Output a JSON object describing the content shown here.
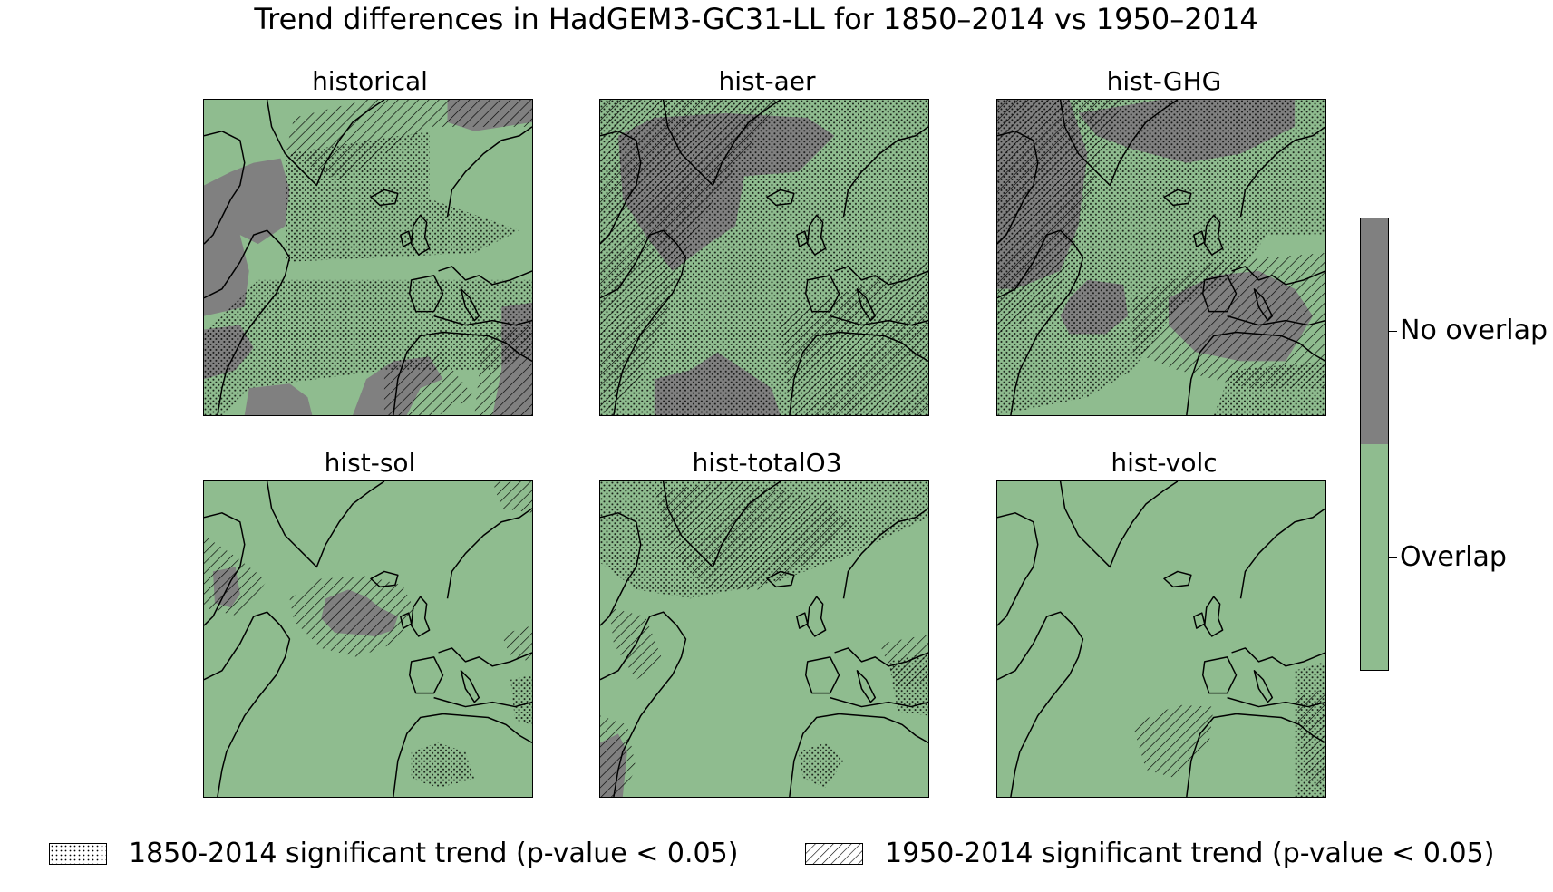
{
  "title": "Trend differences in HadGEM3-GC31-LL for 1850–2014 vs 1950–2014",
  "colors": {
    "overlap": "#8fbc8f",
    "no_overlap": "#808080",
    "coast": "#000000"
  },
  "panels": [
    {
      "label": "historical",
      "no_overlap": [
        [
          [
            0,
            95
          ],
          [
            30,
            80
          ],
          [
            55,
            70
          ],
          [
            85,
            65
          ],
          [
            95,
            100
          ],
          [
            90,
            140
          ],
          [
            60,
            160
          ],
          [
            40,
            150
          ],
          [
            50,
            190
          ],
          [
            45,
            230
          ],
          [
            0,
            240
          ]
        ],
        [
          [
            0,
            255
          ],
          [
            40,
            250
          ],
          [
            55,
            275
          ],
          [
            35,
            300
          ],
          [
            0,
            310
          ]
        ],
        [
          [
            270,
            0
          ],
          [
            364,
            0
          ],
          [
            364,
            25
          ],
          [
            300,
            35
          ],
          [
            270,
            25
          ]
        ],
        [
          [
            180,
            310
          ],
          [
            210,
            290
          ],
          [
            250,
            285
          ],
          [
            265,
            310
          ],
          [
            240,
            320
          ],
          [
            225,
            350
          ],
          [
            165,
            350
          ]
        ],
        [
          [
            50,
            320
          ],
          [
            95,
            315
          ],
          [
            115,
            330
          ],
          [
            120,
            350
          ],
          [
            45,
            350
          ]
        ],
        [
          [
            330,
            230
          ],
          [
            364,
            225
          ],
          [
            364,
            350
          ],
          [
            320,
            350
          ],
          [
            330,
            300
          ]
        ]
      ],
      "dots": [
        [
          [
            90,
            60
          ],
          [
            250,
            35
          ],
          [
            250,
            110
          ],
          [
            350,
            145
          ],
          [
            300,
            170
          ],
          [
            90,
            180
          ]
        ],
        [
          [
            60,
            200
          ],
          [
            364,
            200
          ],
          [
            364,
            280
          ],
          [
            320,
            300
          ],
          [
            200,
            300
          ],
          [
            50,
            320
          ],
          [
            20,
            350
          ],
          [
            0,
            350
          ],
          [
            0,
            260
          ]
        ]
      ],
      "hatch": [
        [
          [
            100,
            20
          ],
          [
            180,
            0
          ],
          [
            364,
            0
          ],
          [
            364,
            30
          ],
          [
            250,
            30
          ],
          [
            150,
            90
          ],
          [
            90,
            60
          ]
        ],
        [
          [
            200,
            300
          ],
          [
            260,
            280
          ],
          [
            300,
            330
          ],
          [
            260,
            350
          ],
          [
            200,
            350
          ]
        ],
        [
          [
            310,
            260
          ],
          [
            364,
            250
          ],
          [
            364,
            350
          ],
          [
            300,
            350
          ]
        ]
      ]
    },
    {
      "label": "hist-aer",
      "no_overlap": [
        [
          [
            20,
            40
          ],
          [
            60,
            20
          ],
          [
            140,
            15
          ],
          [
            230,
            20
          ],
          [
            260,
            40
          ],
          [
            220,
            80
          ],
          [
            160,
            85
          ],
          [
            150,
            140
          ],
          [
            120,
            160
          ],
          [
            80,
            190
          ],
          [
            50,
            150
          ],
          [
            25,
            110
          ]
        ],
        [
          [
            60,
            310
          ],
          [
            100,
            300
          ],
          [
            130,
            280
          ],
          [
            160,
            300
          ],
          [
            190,
            320
          ],
          [
            200,
            350
          ],
          [
            60,
            350
          ]
        ]
      ],
      "dots": [
        [
          [
            0,
            0
          ],
          [
            364,
            0
          ],
          [
            364,
            350
          ],
          [
            0,
            350
          ]
        ]
      ],
      "hatch": [
        [
          [
            0,
            0
          ],
          [
            200,
            0
          ],
          [
            160,
            60
          ],
          [
            120,
            120
          ],
          [
            90,
            180
          ],
          [
            70,
            250
          ],
          [
            40,
            320
          ],
          [
            0,
            350
          ]
        ],
        [
          [
            200,
            240
          ],
          [
            364,
            180
          ],
          [
            364,
            350
          ],
          [
            210,
            350
          ]
        ]
      ]
    },
    {
      "label": "hist-GHG",
      "no_overlap": [
        [
          [
            0,
            0
          ],
          [
            80,
            0
          ],
          [
            100,
            60
          ],
          [
            90,
            140
          ],
          [
            70,
            190
          ],
          [
            20,
            210
          ],
          [
            0,
            210
          ]
        ],
        [
          [
            90,
            15
          ],
          [
            180,
            0
          ],
          [
            330,
            0
          ],
          [
            330,
            30
          ],
          [
            270,
            60
          ],
          [
            210,
            70
          ],
          [
            150,
            55
          ],
          [
            110,
            40
          ]
        ],
        [
          [
            80,
            220
          ],
          [
            100,
            200
          ],
          [
            140,
            205
          ],
          [
            145,
            240
          ],
          [
            120,
            260
          ],
          [
            80,
            260
          ],
          [
            70,
            240
          ]
        ],
        [
          [
            190,
            220
          ],
          [
            240,
            195
          ],
          [
            290,
            190
          ],
          [
            330,
            210
          ],
          [
            350,
            240
          ],
          [
            320,
            290
          ],
          [
            270,
            290
          ],
          [
            220,
            280
          ],
          [
            190,
            250
          ]
        ]
      ],
      "dots": [
        [
          [
            0,
            0
          ],
          [
            364,
            0
          ],
          [
            364,
            150
          ],
          [
            300,
            150
          ],
          [
            260,
            200
          ],
          [
            200,
            230
          ],
          [
            150,
            300
          ],
          [
            100,
            330
          ],
          [
            0,
            350
          ]
        ],
        [
          [
            260,
            300
          ],
          [
            364,
            290
          ],
          [
            364,
            350
          ],
          [
            240,
            350
          ]
        ]
      ],
      "hatch": [
        [
          [
            0,
            0
          ],
          [
            140,
            0
          ],
          [
            110,
            80
          ],
          [
            80,
            180
          ],
          [
            60,
            230
          ],
          [
            0,
            260
          ]
        ],
        [
          [
            150,
            220
          ],
          [
            240,
            180
          ],
          [
            364,
            170
          ],
          [
            364,
            320
          ],
          [
            280,
            320
          ],
          [
            200,
            300
          ],
          [
            150,
            280
          ]
        ]
      ]
    },
    {
      "label": "hist-sol",
      "no_overlap": [
        [
          [
            135,
            130
          ],
          [
            160,
            120
          ],
          [
            180,
            128
          ],
          [
            195,
            140
          ],
          [
            215,
            150
          ],
          [
            210,
            165
          ],
          [
            190,
            172
          ],
          [
            170,
            170
          ],
          [
            145,
            168
          ],
          [
            130,
            152
          ]
        ],
        [
          [
            10,
            100
          ],
          [
            35,
            95
          ],
          [
            40,
            125
          ],
          [
            30,
            140
          ],
          [
            12,
            135
          ]
        ]
      ],
      "dots": [
        [
          [
            230,
            300
          ],
          [
            260,
            290
          ],
          [
            290,
            300
          ],
          [
            300,
            330
          ],
          [
            260,
            340
          ],
          [
            230,
            330
          ]
        ],
        [
          [
            340,
            220
          ],
          [
            364,
            215
          ],
          [
            364,
            270
          ],
          [
            345,
            265
          ]
        ]
      ],
      "hatch": [
        [
          [
            95,
            130
          ],
          [
            130,
            108
          ],
          [
            180,
            105
          ],
          [
            220,
            115
          ],
          [
            235,
            145
          ],
          [
            210,
            180
          ],
          [
            170,
            195
          ],
          [
            130,
            185
          ],
          [
            100,
            155
          ]
        ],
        [
          [
            0,
            60
          ],
          [
            30,
            80
          ],
          [
            70,
            110
          ],
          [
            40,
            150
          ],
          [
            0,
            140
          ]
        ],
        [
          [
            320,
            0
          ],
          [
            364,
            0
          ],
          [
            364,
            35
          ],
          [
            330,
            30
          ]
        ],
        [
          [
            330,
            170
          ],
          [
            364,
            160
          ],
          [
            364,
            200
          ],
          [
            340,
            195
          ]
        ]
      ]
    },
    {
      "label": "hist-totalO3",
      "no_overlap": [
        [
          [
            0,
            290
          ],
          [
            20,
            280
          ],
          [
            30,
            300
          ],
          [
            25,
            350
          ],
          [
            0,
            350
          ]
        ]
      ],
      "dots": [
        [
          [
            0,
            0
          ],
          [
            364,
            0
          ],
          [
            364,
            40
          ],
          [
            280,
            80
          ],
          [
            200,
            110
          ],
          [
            100,
            130
          ],
          [
            40,
            120
          ],
          [
            0,
            90
          ]
        ],
        [
          [
            220,
            300
          ],
          [
            250,
            290
          ],
          [
            270,
            310
          ],
          [
            250,
            340
          ],
          [
            225,
            330
          ]
        ],
        [
          [
            320,
            200
          ],
          [
            364,
            190
          ],
          [
            364,
            260
          ],
          [
            330,
            255
          ]
        ]
      ],
      "hatch": [
        [
          [
            60,
            10
          ],
          [
            150,
            0
          ],
          [
            250,
            20
          ],
          [
            280,
            50
          ],
          [
            230,
            90
          ],
          [
            180,
            120
          ],
          [
            120,
            120
          ],
          [
            80,
            80
          ]
        ],
        [
          [
            10,
            140
          ],
          [
            50,
            150
          ],
          [
            70,
            200
          ],
          [
            40,
            220
          ],
          [
            15,
            180
          ]
        ],
        [
          [
            0,
            260
          ],
          [
            30,
            270
          ],
          [
            40,
            320
          ],
          [
            20,
            350
          ],
          [
            0,
            350
          ]
        ],
        [
          [
            310,
            180
          ],
          [
            364,
            170
          ],
          [
            364,
            220
          ],
          [
            330,
            230
          ]
        ]
      ]
    },
    {
      "label": "hist-volc",
      "no_overlap": [],
      "dots": [
        [
          [
            330,
            210
          ],
          [
            364,
            200
          ],
          [
            364,
            350
          ],
          [
            330,
            350
          ]
        ]
      ],
      "hatch": [
        [
          [
            150,
            270
          ],
          [
            200,
            248
          ],
          [
            240,
            250
          ],
          [
            235,
            290
          ],
          [
            200,
            330
          ],
          [
            165,
            320
          ]
        ],
        [
          [
            330,
            240
          ],
          [
            364,
            230
          ],
          [
            364,
            340
          ],
          [
            345,
            335
          ]
        ]
      ]
    }
  ],
  "colorbar": {
    "labels": [
      "No overlap",
      "Overlap"
    ]
  },
  "legend": [
    {
      "pattern": "dots",
      "label": "1850-2014 significant trend (p-value < 0.05)"
    },
    {
      "pattern": "hatch",
      "label": "1950-2014 significant trend (p-value < 0.05)"
    }
  ]
}
